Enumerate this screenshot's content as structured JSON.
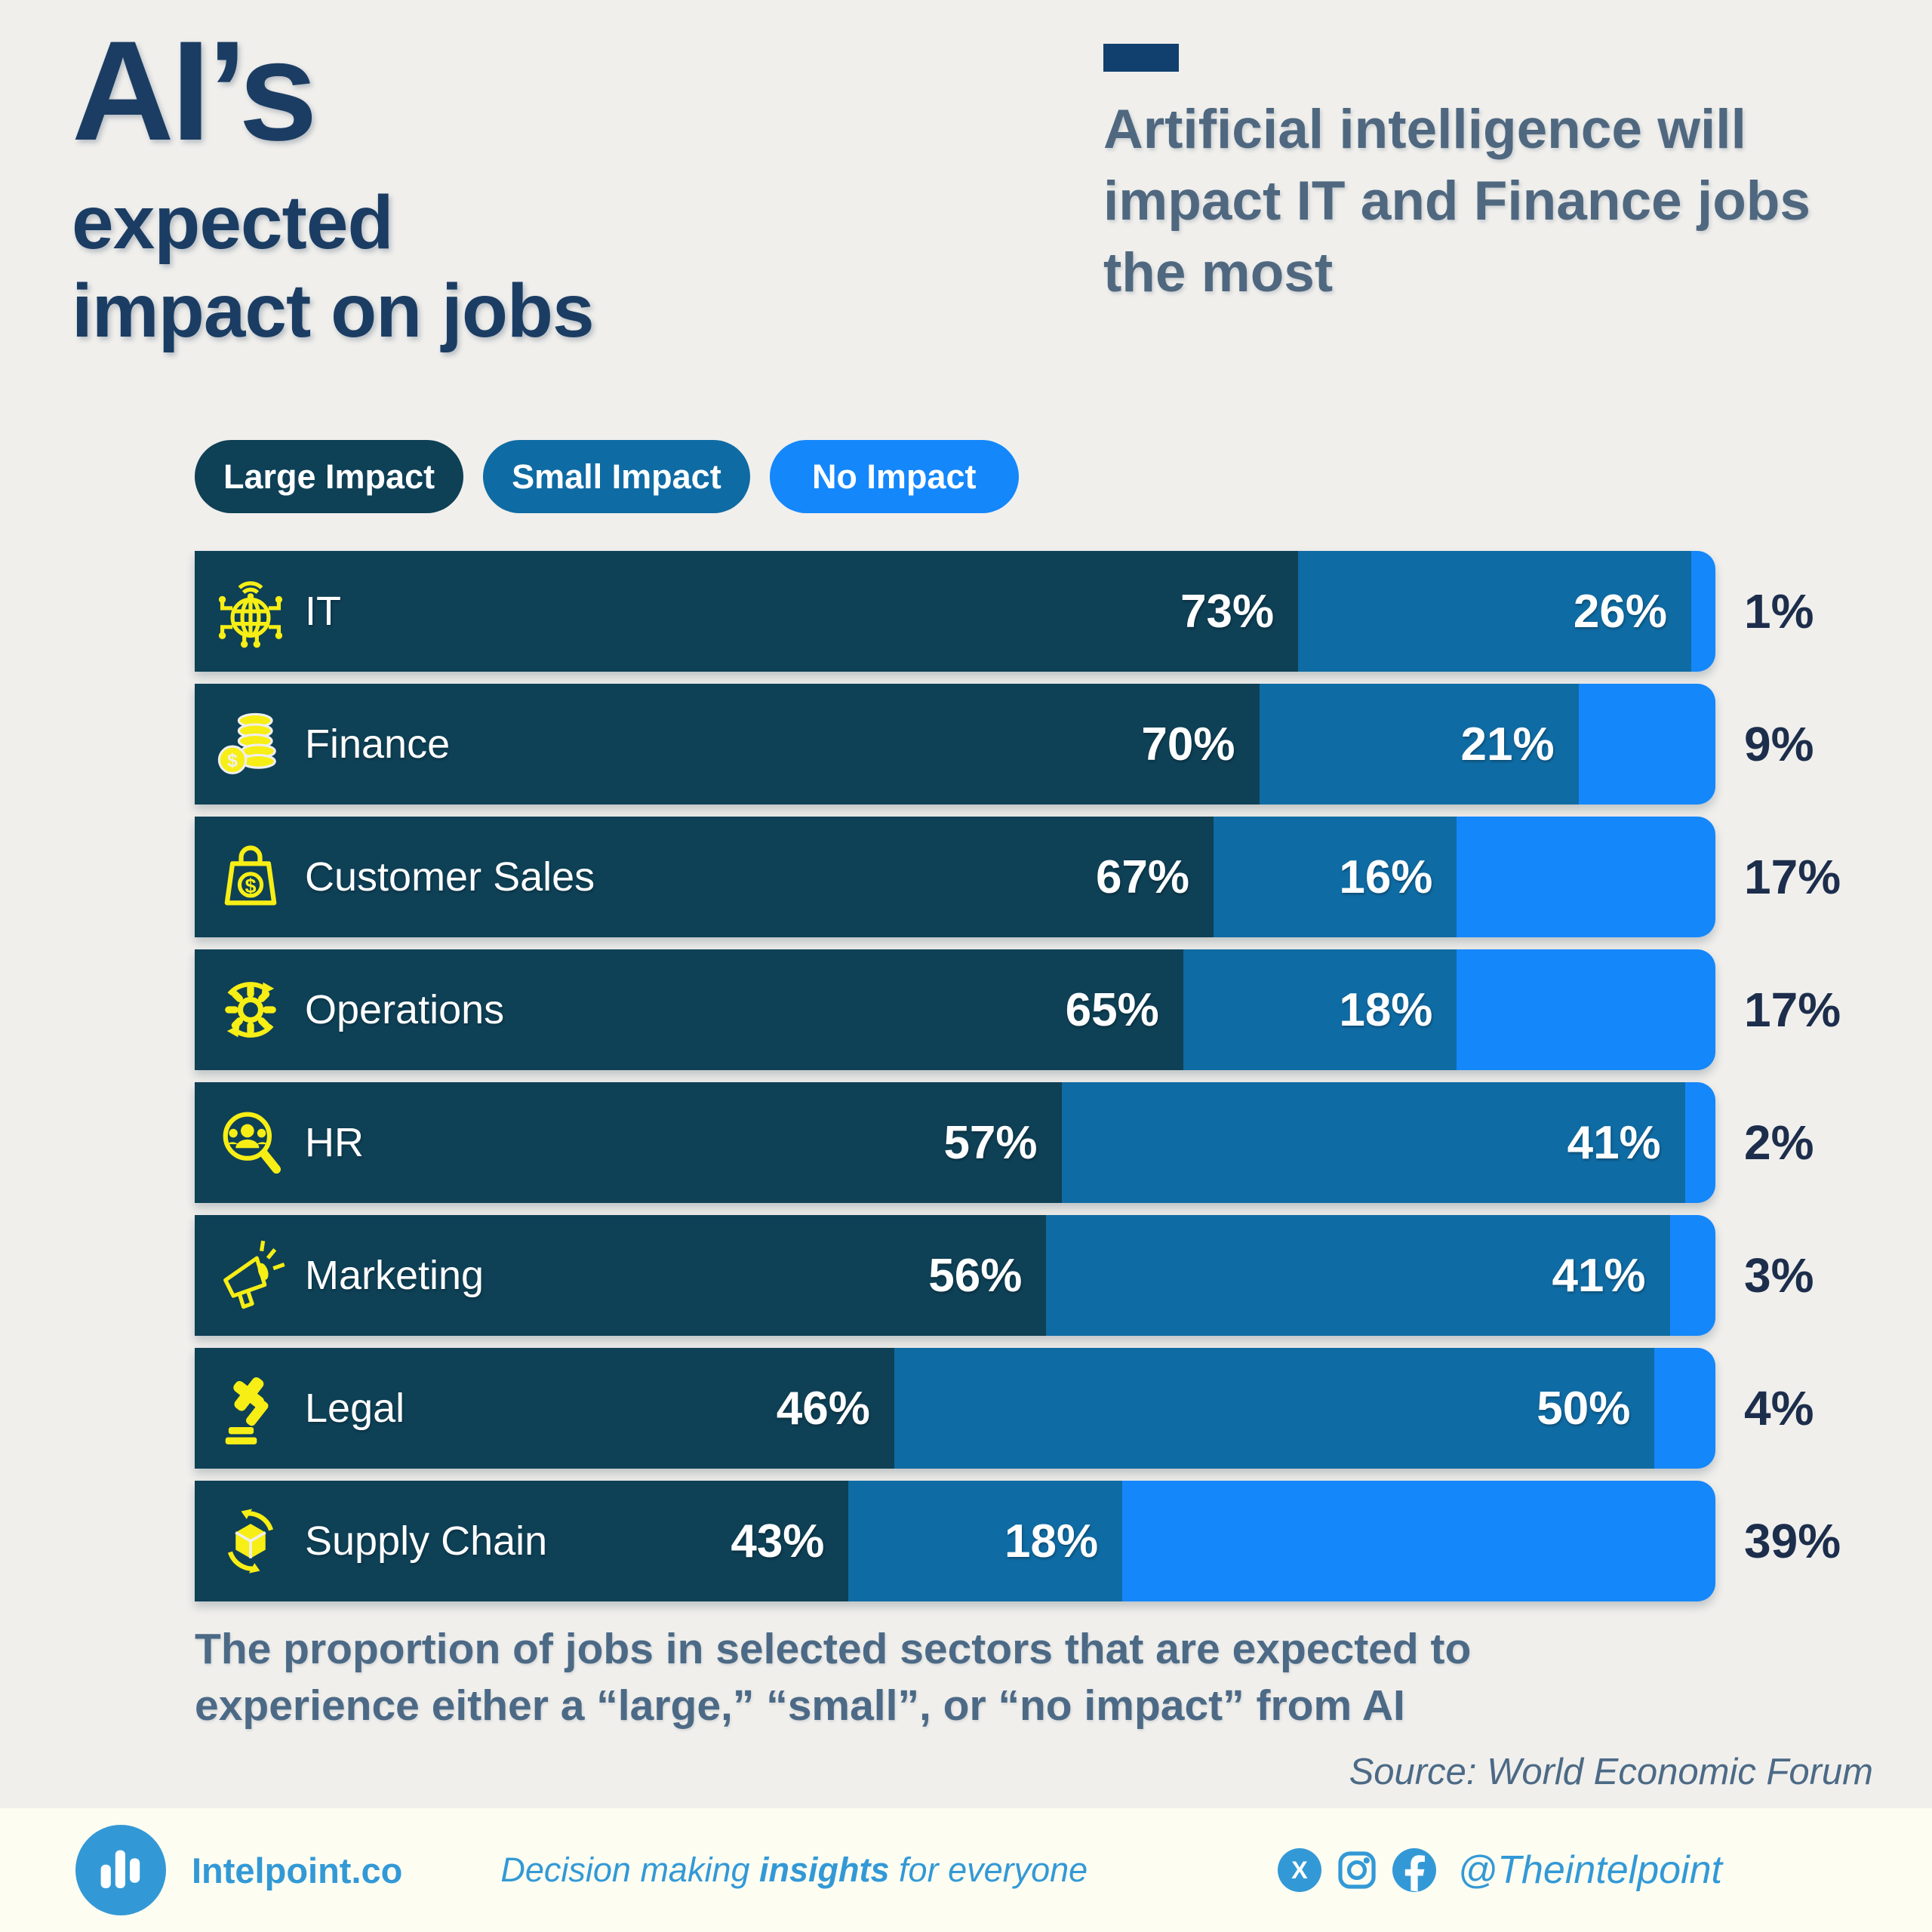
{
  "header": {
    "title_line1": "AI’s",
    "title_line2": "expected",
    "title_line3": "impact on jobs",
    "subtitle": "Artificial intelligence will impact IT and Finance jobs the most"
  },
  "legend": [
    {
      "label": "Large Impact",
      "color": "#0e4056"
    },
    {
      "label": "Small Impact",
      "color": "#0f6ba3"
    },
    {
      "label": "No Impact",
      "color": "#1487fb"
    }
  ],
  "chart_data": {
    "type": "bar",
    "orientation": "horizontal-stacked",
    "title": "AI’s expected impact on jobs",
    "categories": [
      "IT",
      "Finance",
      "Customer Sales",
      "Operations",
      "HR",
      "Marketing",
      "Legal",
      "Supply Chain"
    ],
    "icons": [
      "globe-network-icon",
      "coins-icon",
      "shopping-bag-icon",
      "gear-sync-icon",
      "people-search-icon",
      "megaphone-icon",
      "gavel-icon",
      "box-recycle-icon"
    ],
    "series": [
      {
        "name": "Large Impact",
        "color": "#0e4056",
        "values": [
          73,
          70,
          67,
          65,
          57,
          56,
          46,
          43
        ]
      },
      {
        "name": "Small Impact",
        "color": "#0f6ba3",
        "values": [
          26,
          21,
          16,
          18,
          41,
          41,
          50,
          18
        ]
      },
      {
        "name": "No Impact",
        "color": "#1487fb",
        "values": [
          1,
          9,
          17,
          17,
          2,
          3,
          4,
          39
        ]
      }
    ],
    "value_suffix": "%",
    "xlim": [
      0,
      100
    ],
    "legend_position": "top-left",
    "grid": false
  },
  "caption": "The proportion of jobs in selected sectors that are expected to experience either a “large,” “small”, or “no impact” from AI",
  "source": "Source: World Economic Forum",
  "footer": {
    "brand": "Intelpoint.co",
    "tagline_prefix": "Decision making ",
    "tagline_bold": "insights",
    "tagline_suffix": " for everyone",
    "handle": "@Theintelpoint",
    "social": [
      "x-icon",
      "instagram-icon",
      "facebook-icon"
    ],
    "brand_color": "#3399d6"
  },
  "colors": {
    "background": "#f0efec",
    "footer_background": "#fdfdf2",
    "title": "#1b3d63",
    "subtitle": "#4f6880",
    "accent_bar": "#11406e",
    "outside_label": "#1d2e4c",
    "icon_yellow": "#f7ee15"
  }
}
